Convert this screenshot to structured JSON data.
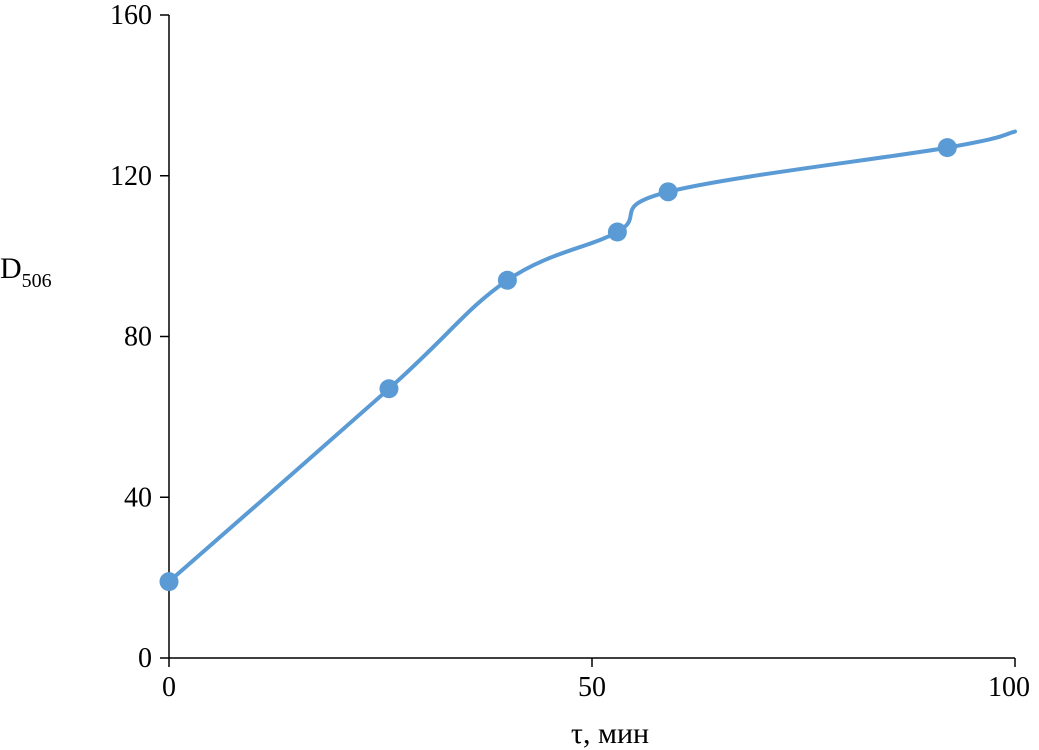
{
  "chart_data": {
    "type": "line",
    "title": "",
    "xlabel": "τ, мин",
    "ylabel_main": "D",
    "ylabel_sub": "506",
    "xlim": [
      0,
      100
    ],
    "ylim": [
      0,
      160
    ],
    "x_ticks": [
      0,
      50,
      100
    ],
    "y_ticks": [
      0,
      40,
      80,
      120,
      160
    ],
    "x_tick_labels": [
      "0",
      "50",
      "100"
    ],
    "y_tick_labels": [
      "0",
      "40",
      "80",
      "120",
      "160"
    ],
    "grid": false,
    "legend": "none",
    "smooth": true,
    "line_end": {
      "x": 100,
      "y": 131
    },
    "series": [
      {
        "color": "#5b9bd5",
        "x": [
          0,
          26,
          40,
          53,
          59,
          92
        ],
        "y": [
          19,
          67,
          94,
          106,
          116,
          127
        ]
      }
    ]
  }
}
